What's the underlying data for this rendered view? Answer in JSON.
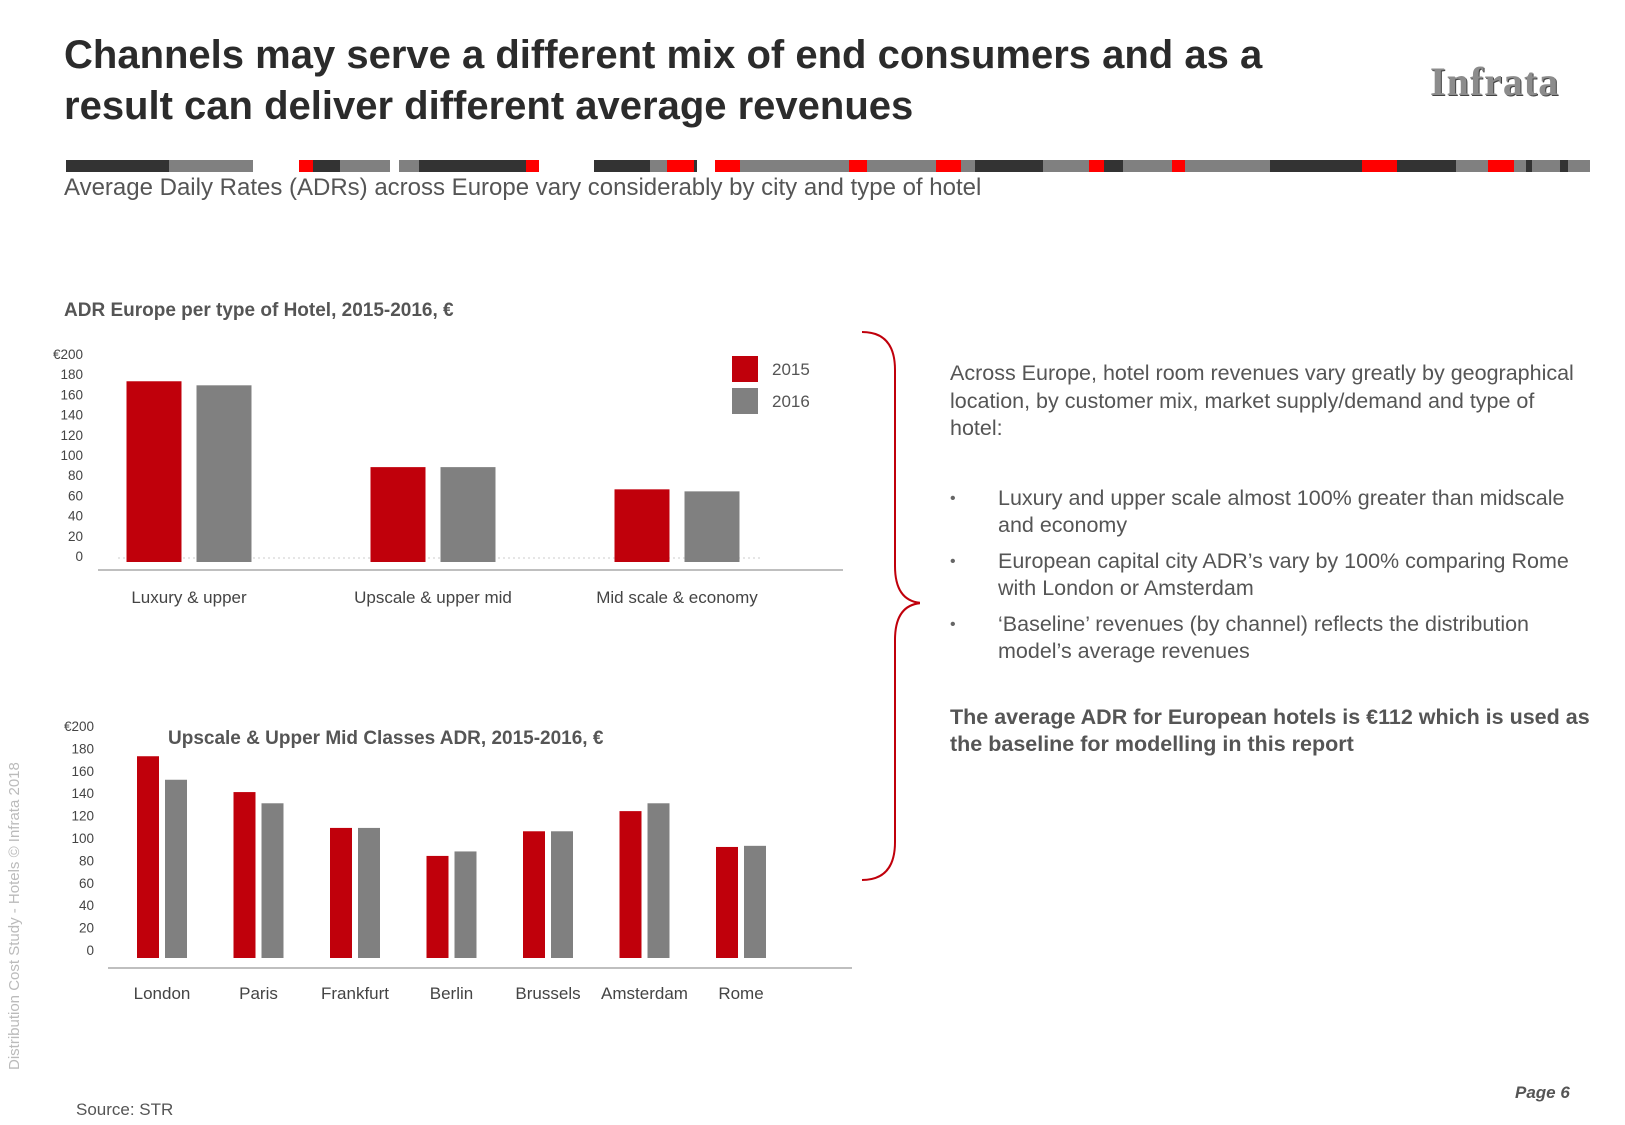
{
  "header": {
    "title": "Channels may serve a different mix of end consumers and as a result can deliver different average revenues",
    "logo": "Infrata",
    "subtitle": "Average Daily Rates (ADRs) across Europe vary considerably by city and type of hotel"
  },
  "colors": {
    "series_2015": "#c0000b",
    "series_2016": "#808080",
    "stripe_dark": "#333333",
    "stripe_grey": "#808080",
    "stripe_red": "#ff0000",
    "brace": "#c0000b"
  },
  "chart_data": [
    {
      "type": "bar",
      "title": "ADR Europe per type of Hotel, 2015-2016, €",
      "categories": [
        "Luxury & upper",
        "Upscale & upper mid",
        "Mid scale & economy"
      ],
      "series": [
        {
          "name": "2015",
          "values": [
            173,
            88,
            66
          ]
        },
        {
          "name": "2016",
          "values": [
            169,
            88,
            64
          ]
        }
      ],
      "ylim": [
        0,
        200
      ],
      "yticks": [
        "€200",
        "180",
        "160",
        "140",
        "120",
        "100",
        "80",
        "60",
        "40",
        "20",
        "0"
      ],
      "xlabel": "",
      "ylabel": "",
      "legend": "top-right"
    },
    {
      "type": "bar",
      "title": "Upscale & Upper Mid Classes ADR, 2015-2016, €",
      "categories": [
        "London",
        "Paris",
        "Frankfurt",
        "Berlin",
        "Brussels",
        "Amsterdam",
        "Rome"
      ],
      "series": [
        {
          "name": "2015",
          "values": [
            173,
            141,
            109,
            84,
            106,
            124,
            92
          ]
        },
        {
          "name": "2016",
          "values": [
            152,
            131,
            109,
            88,
            106,
            131,
            93
          ]
        }
      ],
      "ylim": [
        0,
        200
      ],
      "yticks": [
        "€200",
        "180",
        "160",
        "140",
        "120",
        "100",
        "80",
        "60",
        "40",
        "20",
        "0"
      ],
      "xlabel": "",
      "ylabel": ""
    }
  ],
  "right_panel": {
    "intro": "Across Europe, hotel room revenues vary greatly by geographical location, by customer mix, market supply/demand and type of hotel:",
    "bullet_symbol": "•",
    "bullets": [
      "Luxury and upper scale almost 100% greater than midscale and economy",
      "European capital city ADR’s vary by 100% comparing Rome with London or Amsterdam",
      "‘Baseline’ revenues (by channel) reflects the distribution model’s average revenues"
    ],
    "highlight": "The average ADR for European hotels is €112 which is used as the baseline for modelling in this report"
  },
  "footer": {
    "sidebar_text": "Distribution Cost Study - Hotels © Infrata 2018",
    "page": "Page 6",
    "source": "Source: STR"
  }
}
